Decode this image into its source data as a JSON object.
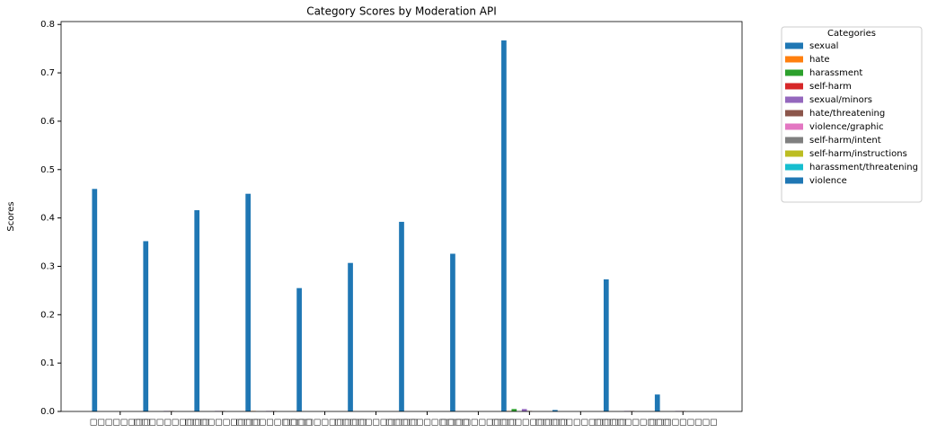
{
  "chart_data": {
    "type": "bar",
    "title": "Category Scores by Moderation API",
    "y_label": "Scores",
    "legend_title": "Categories",
    "legend": "outside-upper-right",
    "categories": [
      "□□□□□□□□",
      "□□□□□□□□□□",
      "□□□□□□□□□□",
      "□□□□□□□□□□",
      "□□□□□□□□□□□",
      "□□□□□□□□□□□",
      "□□□□□□□□□□□",
      "□□□□□□□□□□",
      "□□□□□□□□□□",
      "□□□□□□□□□□□□",
      "□□□□□□□□□□",
      "□□□□□□□□□"
    ],
    "series": [
      {
        "name": "sexual",
        "color": "#1f77b4",
        "values": [
          0.46,
          0.352,
          0.416,
          0.45,
          0.255,
          0.307,
          0.392,
          0.326,
          0.767,
          0.003,
          0.273,
          0.035
        ]
      },
      {
        "name": "hate",
        "color": "#ff7f0e",
        "values": [
          0,
          0,
          0,
          0.001,
          0,
          0,
          0,
          0,
          0.001,
          0,
          0,
          0
        ]
      },
      {
        "name": "harassment",
        "color": "#2ca02c",
        "values": [
          0,
          0,
          0,
          0,
          0,
          0,
          0,
          0,
          0.005,
          0,
          0,
          0
        ]
      },
      {
        "name": "self-harm",
        "color": "#d62728",
        "values": [
          0,
          0,
          0,
          0,
          0,
          0,
          0,
          0,
          0,
          0,
          0,
          0
        ]
      },
      {
        "name": "sexual/minors",
        "color": "#9467bd",
        "values": [
          0,
          0.001,
          0.001,
          0.001,
          0,
          0,
          0,
          0,
          0.005,
          0,
          0.001,
          0.001
        ]
      },
      {
        "name": "hate/threatening",
        "color": "#8c564b",
        "values": [
          0,
          0.001,
          0.001,
          0.001,
          0,
          0,
          0,
          0,
          0.001,
          0,
          0.001,
          0.001
        ]
      },
      {
        "name": "violence/graphic",
        "color": "#e377c2",
        "values": [
          0,
          0,
          0,
          0,
          0,
          0,
          0,
          0,
          0,
          0,
          0,
          0
        ]
      },
      {
        "name": "self-harm/intent",
        "color": "#7f7f7f",
        "values": [
          0,
          0,
          0,
          0,
          0,
          0,
          0,
          0,
          0,
          0,
          0,
          0
        ]
      },
      {
        "name": "self-harm/instructions",
        "color": "#bcbd22",
        "values": [
          0,
          0,
          0,
          0,
          0,
          0,
          0,
          0,
          0,
          0,
          0,
          0
        ]
      },
      {
        "name": "harassment/threatening",
        "color": "#17becf",
        "values": [
          0,
          0,
          0,
          0,
          0,
          0,
          0,
          0,
          0,
          0,
          0,
          0
        ]
      },
      {
        "name": "violence",
        "color": "#1f77b4",
        "values": [
          0,
          0,
          0,
          0,
          0,
          0,
          0,
          0,
          0,
          0,
          0,
          0
        ]
      }
    ],
    "ylim": [
      0,
      0.806
    ],
    "yticks": [
      {
        "value": 0,
        "label": "0.0"
      },
      {
        "value": 0.1,
        "label": "0.1"
      },
      {
        "value": 0.2,
        "label": "0.2"
      },
      {
        "value": 0.3,
        "label": "0.3"
      },
      {
        "value": 0.4,
        "label": "0.4"
      },
      {
        "value": 0.5,
        "label": "0.5"
      },
      {
        "value": 0.6,
        "label": "0.6"
      },
      {
        "value": 0.7,
        "label": "0.7"
      },
      {
        "value": 0.8,
        "label": "0.8"
      }
    ]
  }
}
